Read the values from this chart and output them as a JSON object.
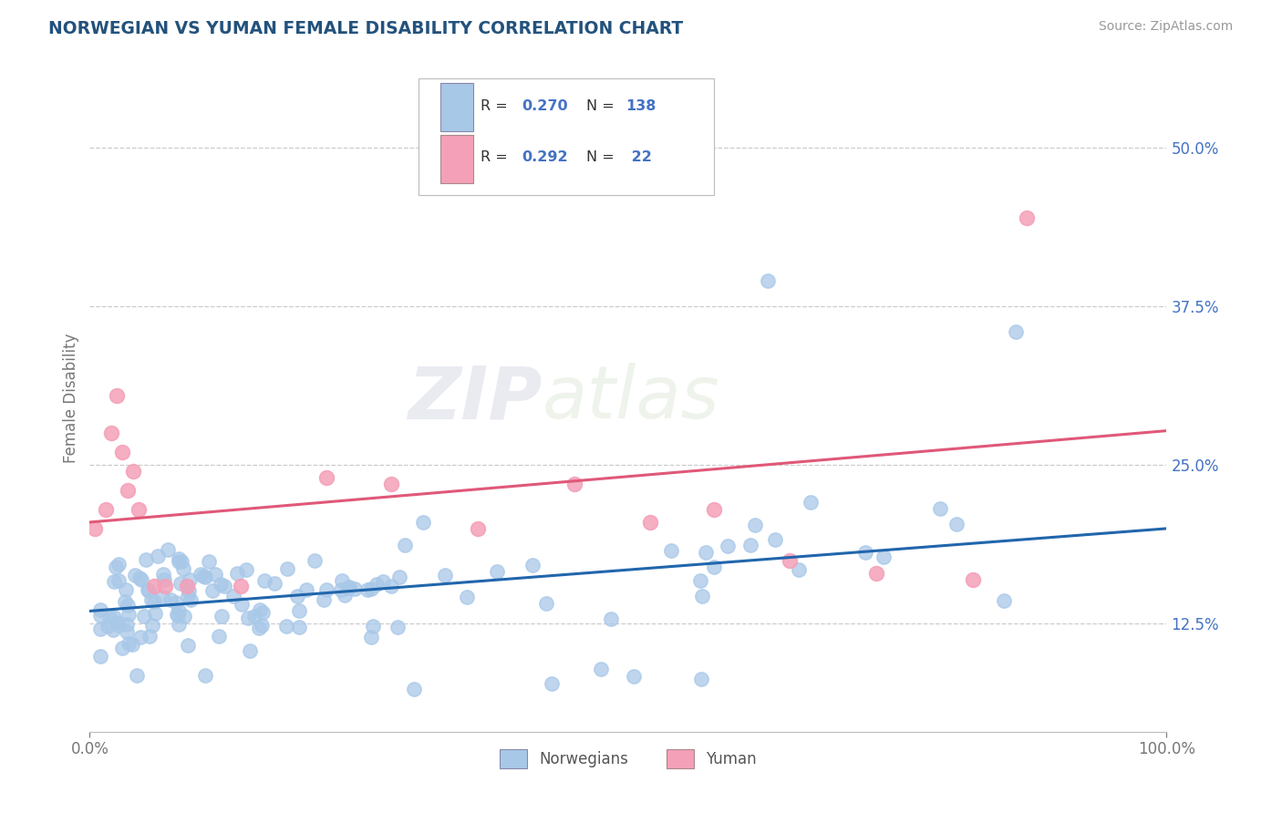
{
  "title": "NORWEGIAN VS YUMAN FEMALE DISABILITY CORRELATION CHART",
  "source": "Source: ZipAtlas.com",
  "ylabel": "Female Disability",
  "watermark_zip": "ZIP",
  "watermark_atlas": "atlas",
  "xlim": [
    0.0,
    1.0
  ],
  "ylim": [
    0.04,
    0.565
  ],
  "yticks": [
    0.125,
    0.25,
    0.375,
    0.5
  ],
  "ytick_labels": [
    "12.5%",
    "25.0%",
    "37.5%",
    "50.0%"
  ],
  "xtick_labels": [
    "0.0%",
    "100.0%"
  ],
  "blue_color": "#a8c8e8",
  "pink_color": "#f4a0b8",
  "blue_line_color": "#2166ac",
  "pink_line_color": "#e05878",
  "title_color": "#23527c",
  "ytick_color": "#4472c4",
  "source_color": "#999999",
  "grid_color": "#cccccc",
  "background_color": "#ffffff",
  "nor_intercept": 0.135,
  "nor_slope": 0.065,
  "yum_intercept": 0.205,
  "yum_slope": 0.072
}
